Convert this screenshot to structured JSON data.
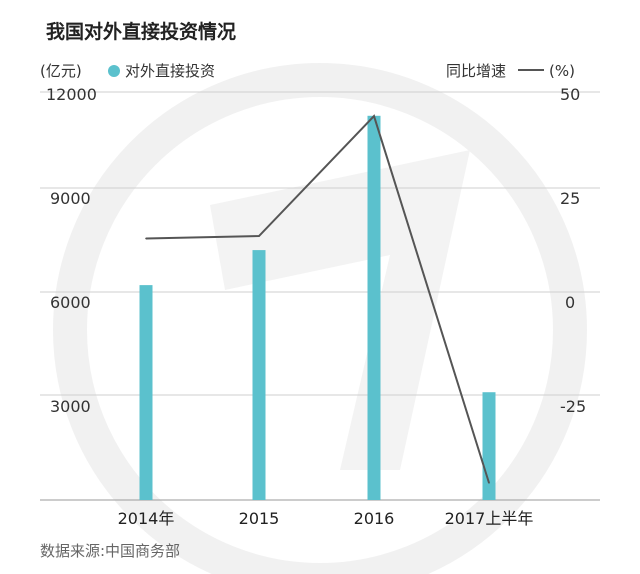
{
  "chart_data": {
    "type": "bar",
    "title": "我国对外直接投资情况",
    "categories": [
      "2014年",
      "2015",
      "2016",
      "2017上半年"
    ],
    "series": [
      {
        "name": "对外直接投资",
        "type": "bar",
        "axis": "left",
        "values": [
          6320,
          7350,
          11300,
          3170
        ],
        "color": "#5bc1cd"
      },
      {
        "name": "同比增速",
        "type": "line",
        "axis": "right",
        "values": [
          14.1,
          14.7,
          44.1,
          -45.8
        ],
        "color": "#555555"
      }
    ],
    "left_axis": {
      "label": "(亿元)",
      "ylim": [
        0,
        12000
      ],
      "ticks": [
        "12000",
        "9000",
        "6000",
        "3000"
      ]
    },
    "right_axis": {
      "label": "(%)",
      "ylim": [
        -50,
        50
      ],
      "ticks": [
        "50",
        "25",
        "0",
        "-25"
      ]
    },
    "legend_bar_label": "对外直接投资",
    "legend_line_label": "同比增速",
    "grid": true,
    "source": "数据来源:中国商务部"
  },
  "colors": {
    "bar": "#5bc1cd",
    "line": "#555555",
    "grid": "#cfcfcf",
    "watermark": "#eeeeee"
  }
}
